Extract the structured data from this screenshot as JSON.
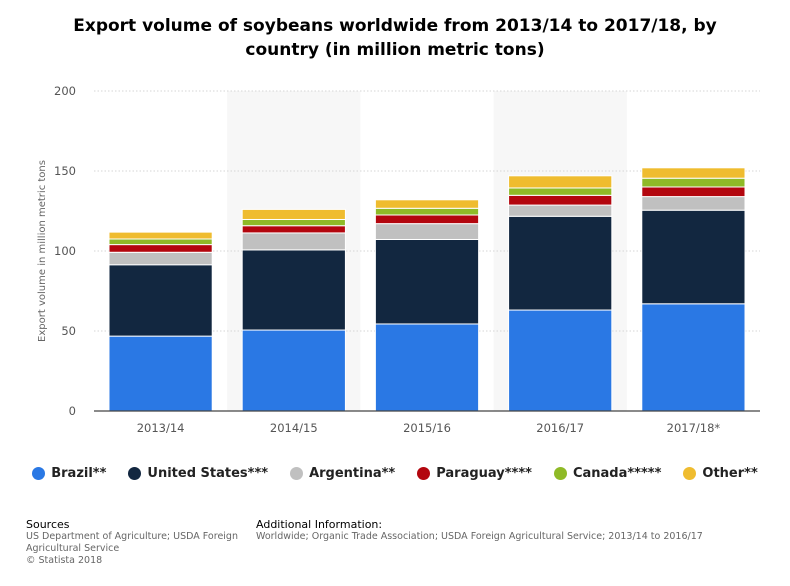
{
  "chart_data": {
    "type": "bar",
    "stacked": true,
    "title": "Export volume of soybeans worldwide from 2013/14 to 2017/18, by country (in million metric tons)",
    "xlabel": "",
    "ylabel": "Export volume in million metric tons",
    "ylim": [
      0,
      200
    ],
    "yticks": [
      "0",
      "50",
      "100",
      "150",
      "200"
    ],
    "grid": true,
    "legend_position": "bottom",
    "categories": [
      "2013/14",
      "2014/15",
      "2015/16",
      "2016/17",
      "2017/18*"
    ],
    "series": [
      {
        "name": "Brazil**",
        "color": "#2a78e4",
        "values": [
          46.8,
          50.6,
          54.4,
          63.1,
          67.0
        ]
      },
      {
        "name": "United States***",
        "color": "#122740",
        "values": [
          44.6,
          50.1,
          52.8,
          58.6,
          58.5
        ]
      },
      {
        "name": "Argentina**",
        "color": "#c0c0c0",
        "values": [
          7.8,
          10.6,
          9.9,
          7.0,
          8.5
        ]
      },
      {
        "name": "Paraguay****",
        "color": "#b3060e",
        "values": [
          4.8,
          4.5,
          5.4,
          6.1,
          6.0
        ]
      },
      {
        "name": "Canada*****",
        "color": "#8fba27",
        "values": [
          3.5,
          3.9,
          4.2,
          4.6,
          5.5
        ]
      },
      {
        "name": "Other**",
        "color": "#efbc2f",
        "values": [
          4.3,
          6.3,
          5.3,
          7.6,
          6.5
        ]
      }
    ]
  },
  "footer": {
    "sources_heading": "Sources",
    "sources_lines": [
      "US Department of Agriculture; USDA Foreign",
      "Agricultural Service",
      "© Statista 2018"
    ],
    "info_heading": "Additional Information:",
    "info_lines": [
      "Worldwide; Organic Trade Association; USDA Foreign Agricultural Service; 2013/14 to 2016/17"
    ]
  }
}
